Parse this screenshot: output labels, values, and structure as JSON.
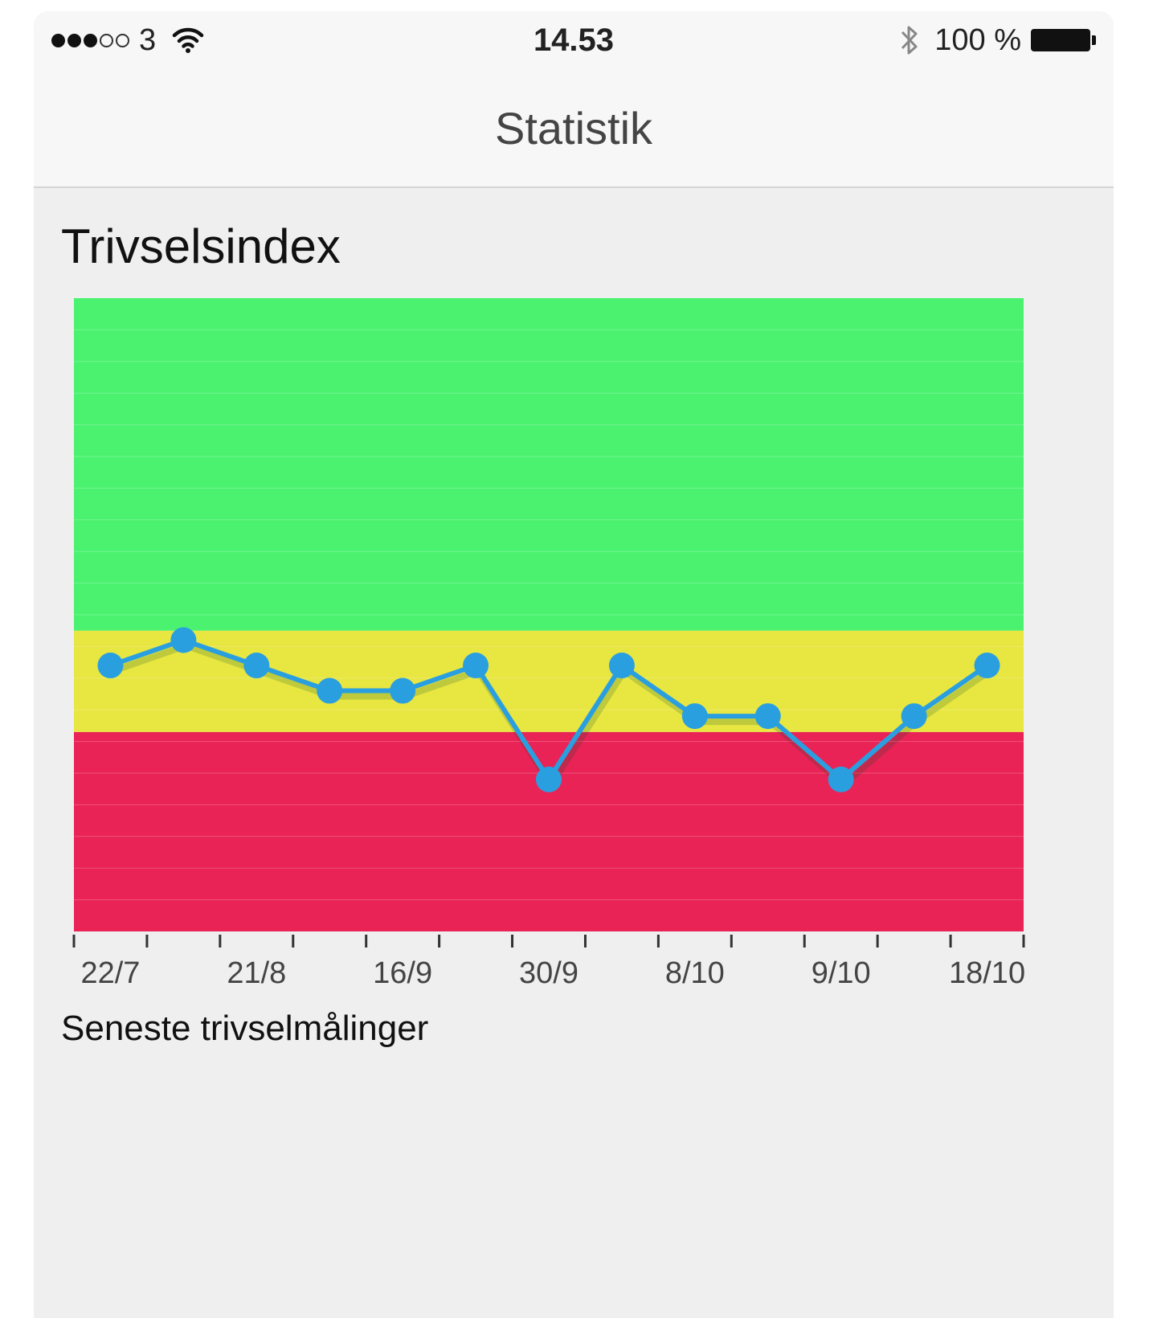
{
  "status_bar": {
    "carrier": "3",
    "time": "14.53",
    "battery_percent": "100 %",
    "signal_strength": 3,
    "signal_max": 5,
    "icons": [
      "wifi-icon",
      "bluetooth-icon",
      "battery-icon"
    ]
  },
  "nav": {
    "title": "Statistik"
  },
  "section": {
    "title": "Trivselsindex",
    "subtitle": "Seneste trivselmålinger"
  },
  "chart_data": {
    "type": "line",
    "title": "",
    "xlabel": "",
    "ylabel": "",
    "x_tick_labels": [
      "22/7",
      "21/8",
      "16/9",
      "30/9",
      "8/10",
      "9/10",
      "18/10"
    ],
    "values": [
      8.4,
      9.2,
      8.4,
      7.6,
      7.6,
      8.4,
      4.8,
      8.4,
      6.8,
      6.8,
      4.8,
      6.8,
      8.4
    ],
    "ylim": [
      0,
      20
    ],
    "bands": [
      {
        "from": 0,
        "to": 6.3,
        "color": "#e92355"
      },
      {
        "from": 6.3,
        "to": 9.5,
        "color": "#e8e641"
      },
      {
        "from": 9.5,
        "to": 20,
        "color": "#4bf270"
      }
    ],
    "line_color": "#2a9fe0",
    "grid": true,
    "legend": "none"
  }
}
